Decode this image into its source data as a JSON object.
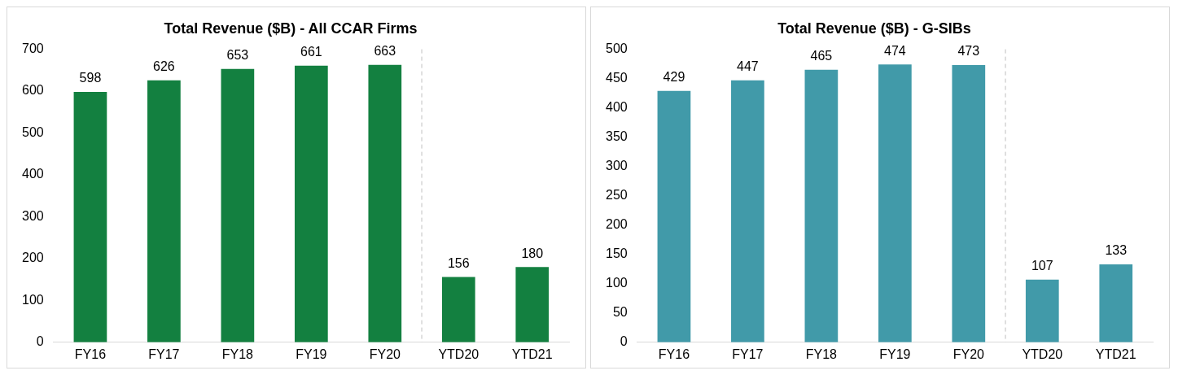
{
  "chart_data": [
    {
      "type": "bar",
      "title": "Total Revenue ($B) - All CCAR Firms",
      "categories": [
        "FY16",
        "FY17",
        "FY18",
        "FY19",
        "FY20",
        "YTD20",
        "YTD21"
      ],
      "values": [
        598,
        626,
        653,
        661,
        663,
        156,
        180
      ],
      "color": "#138040",
      "ylim": [
        0,
        700
      ],
      "yticks": [
        0,
        100,
        200,
        300,
        400,
        500,
        600,
        700
      ],
      "grid": false,
      "data_labels": true
    },
    {
      "type": "bar",
      "title": "Total Revenue ($B) - G-SIBs",
      "categories": [
        "FY16",
        "FY17",
        "FY18",
        "FY19",
        "FY20",
        "YTD20",
        "YTD21"
      ],
      "values": [
        429,
        447,
        465,
        474,
        473,
        107,
        133
      ],
      "color": "#419aa9",
      "ylim": [
        0,
        500
      ],
      "yticks": [
        0,
        50,
        100,
        150,
        200,
        250,
        300,
        350,
        400,
        450,
        500
      ],
      "grid": false,
      "data_labels": true
    }
  ]
}
